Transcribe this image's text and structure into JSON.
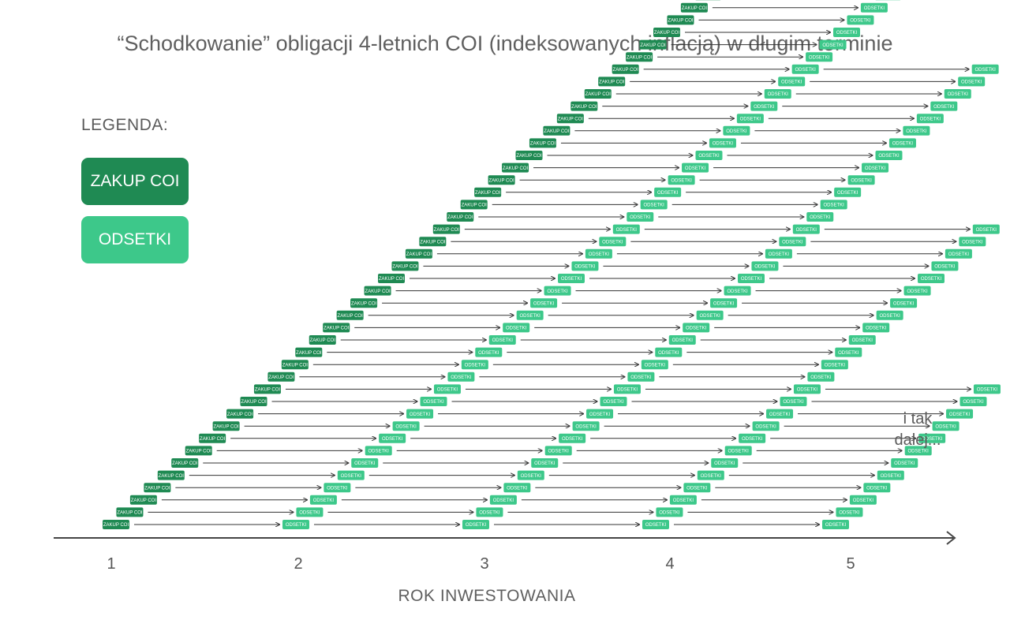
{
  "title": "“Schodkowanie” obligacji 4-letnich COI (indeksowanych inflacją) w długim terminie",
  "legend": {
    "heading": "LEGENDA:",
    "buy_label": "ZAKUP COI",
    "interest_label": "ODSETKI"
  },
  "labels": {
    "buy": "ZAKUP COI",
    "interest": "ODSETKI"
  },
  "axis": {
    "label": "ROK INWESTOWANIA",
    "ticks": [
      "1",
      "2",
      "3",
      "4",
      "5"
    ]
  },
  "note": [
    "i tak",
    "dalej..."
  ],
  "schedule": {
    "monthly_purchases": 44,
    "interest_payments_per_bond": 4
  },
  "colors": {
    "buy": "#1f8a53",
    "interest": "#3dc88a",
    "arrow": "#333333",
    "axis": "#444444"
  }
}
